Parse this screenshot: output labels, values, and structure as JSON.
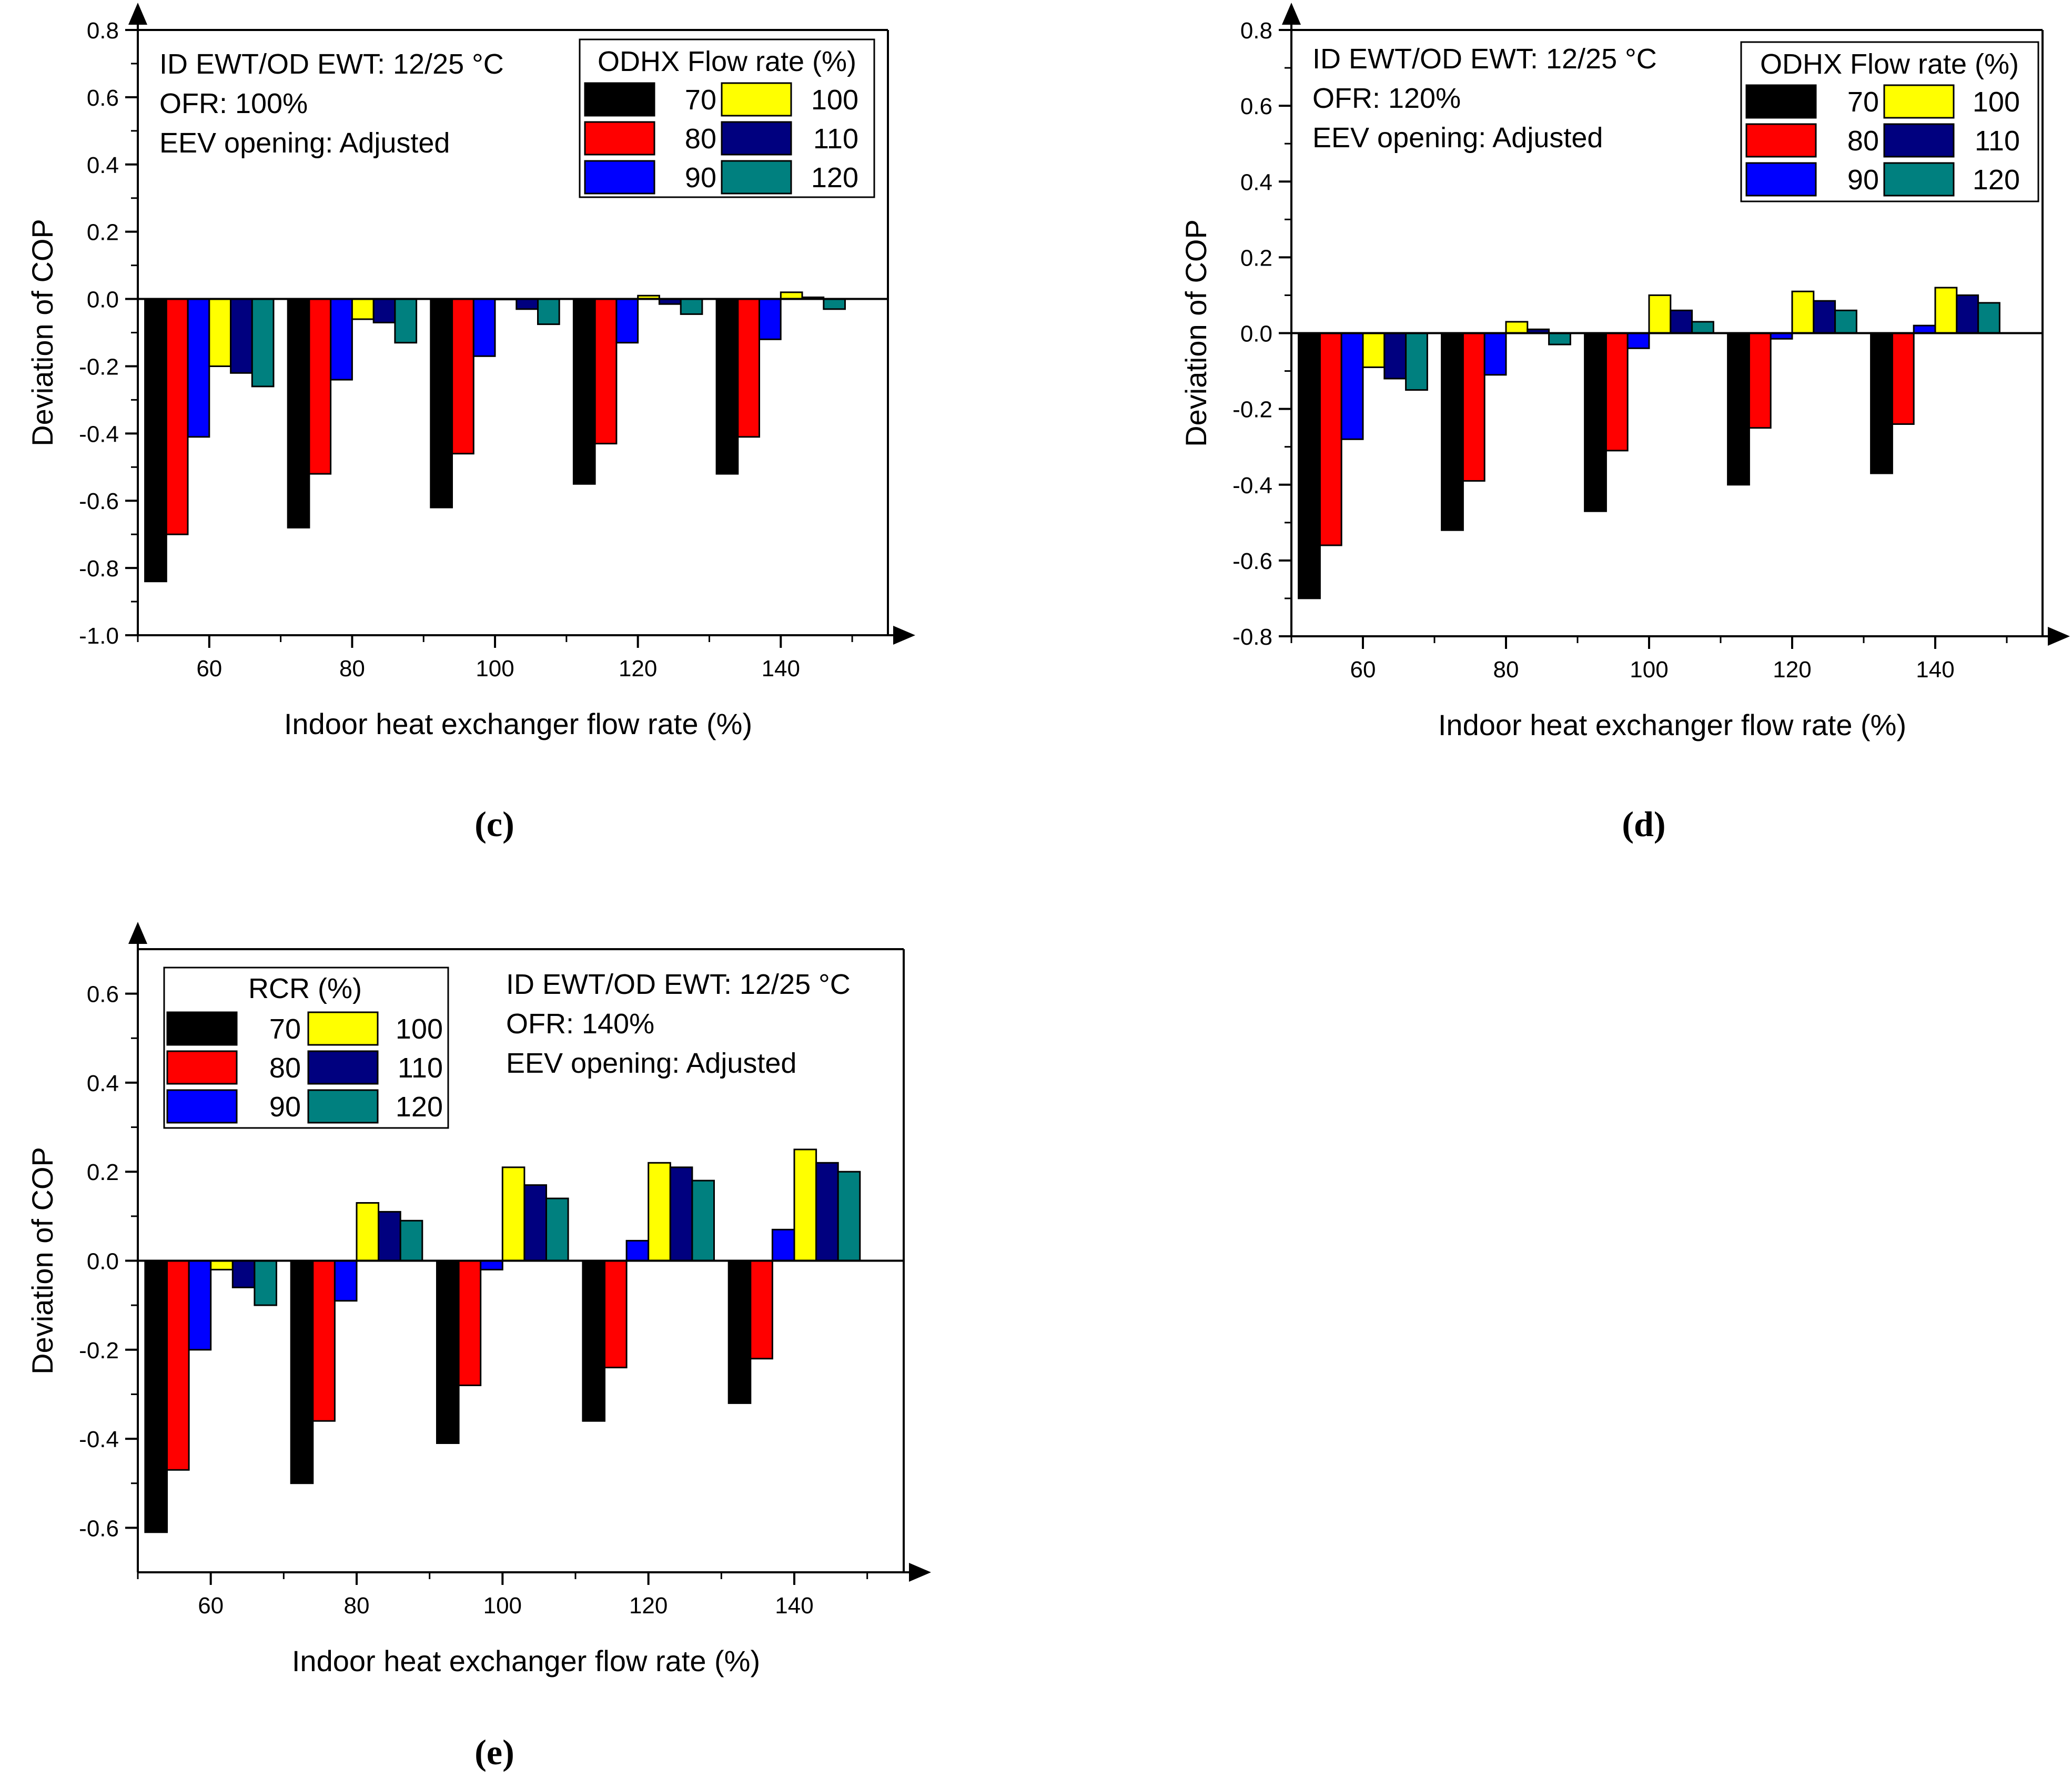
{
  "figure": {
    "colors": {
      "axis": "#000000",
      "background": "#ffffff",
      "series": [
        "#000000",
        "#ff0000",
        "#0000ff",
        "#ffff00",
        "#00007f",
        "#00807f"
      ]
    }
  },
  "chart_data": [
    {
      "id": "c",
      "type": "bar",
      "caption": "c",
      "categories": [
        "60",
        "80",
        "100",
        "120",
        "140"
      ],
      "xlabel": "Indoor heat exchanger flow rate (%)",
      "ylabel": "Deviation of COP",
      "ylim": [
        -1.0,
        0.8
      ],
      "yticks": [
        -1.0,
        -0.8,
        -0.6,
        -0.4,
        -0.2,
        0.0,
        0.2,
        0.4,
        0.6,
        0.8
      ],
      "ytick_labels": [
        "-1.0",
        "-0.8",
        "-0.6",
        "-0.4",
        "-0.2",
        "0.0",
        "0.2",
        "0.4",
        "0.6",
        "0.8"
      ],
      "grid": false,
      "legend_title": "ODHX Flow rate (%)",
      "legend_placement": "top-right",
      "annotations": [
        "ID EWT/OD EWT: 12/25 °C",
        "OFR: 100%",
        "EEV opening: Adjusted"
      ],
      "series": [
        {
          "name": "70",
          "values": [
            -0.84,
            -0.68,
            -0.62,
            -0.55,
            -0.52
          ]
        },
        {
          "name": "80",
          "values": [
            -0.7,
            -0.52,
            -0.46,
            -0.43,
            -0.41
          ]
        },
        {
          "name": "90",
          "values": [
            -0.41,
            -0.24,
            -0.17,
            -0.13,
            -0.12
          ]
        },
        {
          "name": "100",
          "values": [
            -0.2,
            -0.06,
            0.0,
            0.01,
            0.02
          ]
        },
        {
          "name": "110",
          "values": [
            -0.22,
            -0.07,
            -0.03,
            -0.015,
            0.005
          ]
        },
        {
          "name": "120",
          "values": [
            -0.26,
            -0.13,
            -0.075,
            -0.045,
            -0.03
          ]
        }
      ]
    },
    {
      "id": "d",
      "type": "bar",
      "caption": "d",
      "categories": [
        "60",
        "80",
        "100",
        "120",
        "140"
      ],
      "xlabel": "Indoor heat exchanger flow rate (%)",
      "ylabel": "Deviation of COP",
      "ylim": [
        -0.8,
        0.8
      ],
      "yticks": [
        -0.8,
        -0.6,
        -0.4,
        -0.2,
        0.0,
        0.2,
        0.4,
        0.6,
        0.8
      ],
      "ytick_labels": [
        "-0.8",
        "-0.6",
        "-0.4",
        "-0.2",
        "0.0",
        "0.2",
        "0.4",
        "0.6",
        "0.8"
      ],
      "grid": false,
      "legend_title": "ODHX Flow rate (%)",
      "legend_placement": "top-right",
      "annotations": [
        "ID EWT/OD EWT: 12/25 °C",
        "OFR: 120%",
        "EEV opening: Adjusted"
      ],
      "series": [
        {
          "name": "70",
          "values": [
            -0.7,
            -0.52,
            -0.47,
            -0.4,
            -0.37
          ]
        },
        {
          "name": "80",
          "values": [
            -0.56,
            -0.39,
            -0.31,
            -0.25,
            -0.24
          ]
        },
        {
          "name": "90",
          "values": [
            -0.28,
            -0.11,
            -0.04,
            -0.015,
            0.02
          ]
        },
        {
          "name": "100",
          "values": [
            -0.09,
            0.03,
            0.1,
            0.11,
            0.12
          ]
        },
        {
          "name": "110",
          "values": [
            -0.12,
            0.01,
            0.06,
            0.085,
            0.1
          ]
        },
        {
          "name": "120",
          "values": [
            -0.15,
            -0.03,
            0.03,
            0.06,
            0.08
          ]
        }
      ]
    },
    {
      "id": "e",
      "type": "bar",
      "caption": "e",
      "categories": [
        "60",
        "80",
        "100",
        "120",
        "140"
      ],
      "xlabel": "Indoor heat exchanger flow rate (%)",
      "ylabel": "Deviation of COP",
      "ylim": [
        -0.7,
        0.7
      ],
      "yticks": [
        -0.6,
        -0.4,
        -0.2,
        0.0,
        0.2,
        0.4,
        0.6
      ],
      "ytick_labels": [
        "-0.6",
        "-0.4",
        "-0.2",
        "0.0",
        "0.2",
        "0.4",
        "0.6"
      ],
      "grid": false,
      "legend_title": "RCR (%)",
      "legend_placement": "top-left",
      "annotations": [
        "ID EWT/OD EWT: 12/25 °C",
        "OFR: 140%",
        "EEV opening: Adjusted"
      ],
      "series": [
        {
          "name": "70",
          "values": [
            -0.61,
            -0.5,
            -0.41,
            -0.36,
            -0.32
          ]
        },
        {
          "name": "80",
          "values": [
            -0.47,
            -0.36,
            -0.28,
            -0.24,
            -0.22
          ]
        },
        {
          "name": "90",
          "values": [
            -0.2,
            -0.09,
            -0.02,
            0.045,
            0.07
          ]
        },
        {
          "name": "100",
          "values": [
            -0.02,
            0.13,
            0.21,
            0.22,
            0.25
          ]
        },
        {
          "name": "110",
          "values": [
            -0.06,
            0.11,
            0.17,
            0.21,
            0.22
          ]
        },
        {
          "name": "120",
          "values": [
            -0.1,
            0.09,
            0.14,
            0.18,
            0.2
          ]
        }
      ]
    }
  ]
}
